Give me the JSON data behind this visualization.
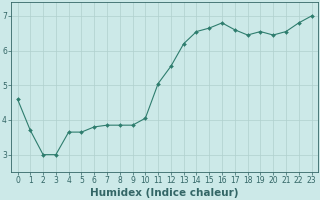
{
  "x": [
    0,
    1,
    2,
    3,
    4,
    5,
    6,
    7,
    8,
    9,
    10,
    11,
    12,
    13,
    14,
    15,
    16,
    17,
    18,
    19,
    20,
    21,
    22,
    23
  ],
  "y": [
    4.6,
    3.7,
    3.0,
    3.0,
    3.65,
    3.65,
    3.8,
    3.85,
    3.85,
    3.85,
    4.05,
    5.05,
    5.55,
    6.2,
    6.55,
    6.65,
    6.8,
    6.6,
    6.45,
    6.55,
    6.45,
    6.55,
    6.8,
    7.0
  ],
  "line_color": "#2e7d6e",
  "marker": "D",
  "marker_size": 2.0,
  "bg_color": "#cce9e8",
  "grid_color": "#b0d0ce",
  "axis_color": "#336666",
  "xlabel": "Humidex (Indice chaleur)",
  "ylabel": "",
  "xlim": [
    -0.5,
    23.5
  ],
  "ylim": [
    2.5,
    7.4
  ],
  "yticks": [
    3,
    4,
    5,
    6,
    7
  ],
  "xticks": [
    0,
    1,
    2,
    3,
    4,
    5,
    6,
    7,
    8,
    9,
    10,
    11,
    12,
    13,
    14,
    15,
    16,
    17,
    18,
    19,
    20,
    21,
    22,
    23
  ],
  "tick_fontsize": 5.5,
  "xlabel_fontsize": 7.5
}
